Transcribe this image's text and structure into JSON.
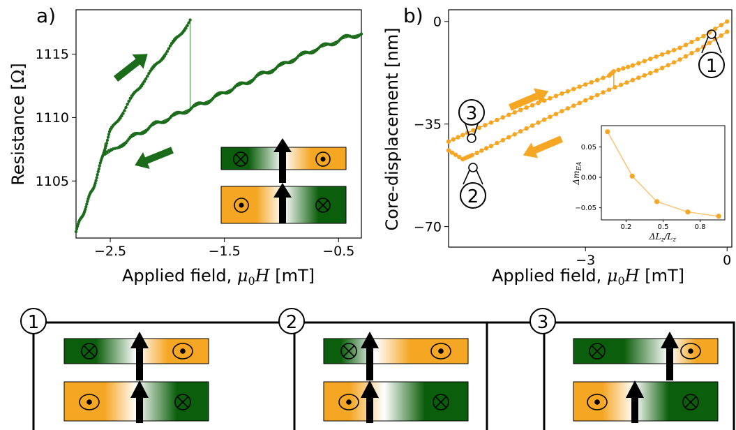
{
  "colors": {
    "green": "#1a6b1a",
    "orange": "#f5a623",
    "dark_green": "#0b5e0b"
  },
  "panel_a": {
    "label": "a)"
  },
  "panel_b": {
    "label": "b)"
  },
  "markers": [
    "1",
    "2",
    "3"
  ],
  "chart_data": [
    {
      "type": "scatter",
      "panel": "a)",
      "xlabel": "Applied field, μ0H [mT]",
      "ylabel": "Resistance [Ω]",
      "xlim": [
        -2.8,
        -0.3
      ],
      "ylim": [
        1100.5,
        1118.5
      ],
      "xticks": [
        -2.5,
        -1.5,
        -0.5
      ],
      "xtick_labels": [
        "−2.5",
        "−1.5",
        "−0.5"
      ],
      "yticks": [
        1105,
        1110,
        1115
      ],
      "ytick_labels": [
        "1105",
        "1110",
        "1115"
      ],
      "color": "#1a6b1a",
      "series": [
        {
          "values": [
            [
              -2.8,
              1101.0
            ],
            [
              -2.75,
              1102.2
            ],
            [
              -2.7,
              1103.3
            ],
            [
              -2.65,
              1104.5
            ],
            [
              -2.6,
              1105.8
            ],
            [
              -2.55,
              1107.6
            ],
            [
              -2.5,
              1108.9
            ],
            [
              -2.4,
              1110.3
            ],
            [
              -2.3,
              1111.7
            ],
            [
              -2.2,
              1113.0
            ],
            [
              -2.1,
              1114.1
            ],
            [
              -2.0,
              1115.3
            ],
            [
              -1.9,
              1116.4
            ],
            [
              -1.8,
              1117.7
            ]
          ]
        },
        {
          "values": [
            [
              -2.55,
              1107.0
            ],
            [
              -2.4,
              1107.9
            ],
            [
              -2.3,
              1108.5
            ],
            [
              -2.2,
              1109.0
            ],
            [
              -2.1,
              1109.5
            ],
            [
              -2.0,
              1109.9
            ],
            [
              -1.9,
              1110.3
            ],
            [
              -1.8,
              1110.7
            ],
            [
              -1.7,
              1111.1
            ],
            [
              -1.6,
              1111.5
            ],
            [
              -1.5,
              1112.0
            ],
            [
              -1.4,
              1112.4
            ],
            [
              -1.3,
              1112.8
            ],
            [
              -1.2,
              1113.3
            ],
            [
              -1.1,
              1113.7
            ],
            [
              -1.0,
              1114.1
            ],
            [
              -0.9,
              1114.6
            ],
            [
              -0.8,
              1115.0
            ],
            [
              -0.7,
              1115.4
            ],
            [
              -0.6,
              1115.7
            ],
            [
              -0.5,
              1116.1
            ],
            [
              -0.4,
              1116.4
            ],
            [
              -0.3,
              1116.6
            ]
          ]
        }
      ],
      "jumps": [
        {
          "x": [
            -1.8,
            -1.8
          ],
          "y": [
            1117.7,
            1110.7
          ]
        },
        {
          "x": [
            -2.55,
            -2.55
          ],
          "y": [
            1108.0,
            1107.0
          ]
        }
      ]
    },
    {
      "type": "scatter",
      "panel": "b)",
      "xlabel": "Applied field, μ0H [mT]",
      "ylabel": "Core-displacement [nm]",
      "xlim": [
        -5.9,
        0.1
      ],
      "ylim": [
        -77,
        4
      ],
      "xticks": [
        -3,
        0
      ],
      "xtick_labels": [
        "−3",
        "0"
      ],
      "yticks": [
        0,
        -35,
        -70
      ],
      "ytick_labels": [
        "0",
        "−35",
        "−70"
      ],
      "color": "#f5a623",
      "series": [
        {
          "values": [
            [
              -5.9,
              -41.0
            ],
            [
              -5.5,
              -38.0
            ],
            [
              -5.0,
              -34.5
            ],
            [
              -4.5,
              -31.0
            ],
            [
              -4.0,
              -27.8
            ],
            [
              -3.5,
              -24.6
            ],
            [
              -3.0,
              -21.5
            ],
            [
              -2.5,
              -18.5
            ],
            [
              -2.4,
              -17.0
            ],
            [
              -2.0,
              -15.0
            ],
            [
              -1.5,
              -12.0
            ],
            [
              -1.0,
              -9.0
            ],
            [
              -0.5,
              -5.0
            ],
            [
              0.0,
              0.0
            ]
          ]
        },
        {
          "values": [
            [
              -5.9,
              -44.0
            ],
            [
              -5.6,
              -47.0
            ],
            [
              -5.4,
              -45.6
            ],
            [
              -5.0,
              -42.5
            ],
            [
              -4.5,
              -38.5
            ],
            [
              -4.0,
              -34.5
            ],
            [
              -3.5,
              -30.6
            ],
            [
              -3.0,
              -26.9
            ],
            [
              -2.5,
              -23.3
            ],
            [
              -2.0,
              -20.0
            ],
            [
              -1.5,
              -16.8
            ],
            [
              -1.0,
              -13.0
            ],
            [
              -0.5,
              -8.6
            ],
            [
              0.0,
              -3.5
            ]
          ]
        }
      ],
      "jumps": [
        {
          "x": [
            -2.4,
            -2.4
          ],
          "y": [
            -17.0,
            -22.5
          ]
        }
      ]
    },
    {
      "type": "line",
      "panel": "b-inset",
      "xlabel": "ΔLz/Lz",
      "ylabel": "ΔmEA",
      "xlim": [
        0.0,
        1.0
      ],
      "ylim": [
        -0.07,
        0.085
      ],
      "xticks": [
        0.2,
        0.5,
        0.8
      ],
      "xtick_labels": [
        "0.2",
        "0.5",
        "0.8"
      ],
      "yticks": [
        0.05,
        0.0,
        -0.05
      ],
      "ytick_labels": [
        "0.05",
        "0.00",
        "−0.05"
      ],
      "color": "#f5a623",
      "x": [
        0.05,
        0.25,
        0.45,
        0.7,
        0.95
      ],
      "values": [
        0.075,
        0.002,
        -0.04,
        -0.057,
        -0.064
      ]
    }
  ]
}
